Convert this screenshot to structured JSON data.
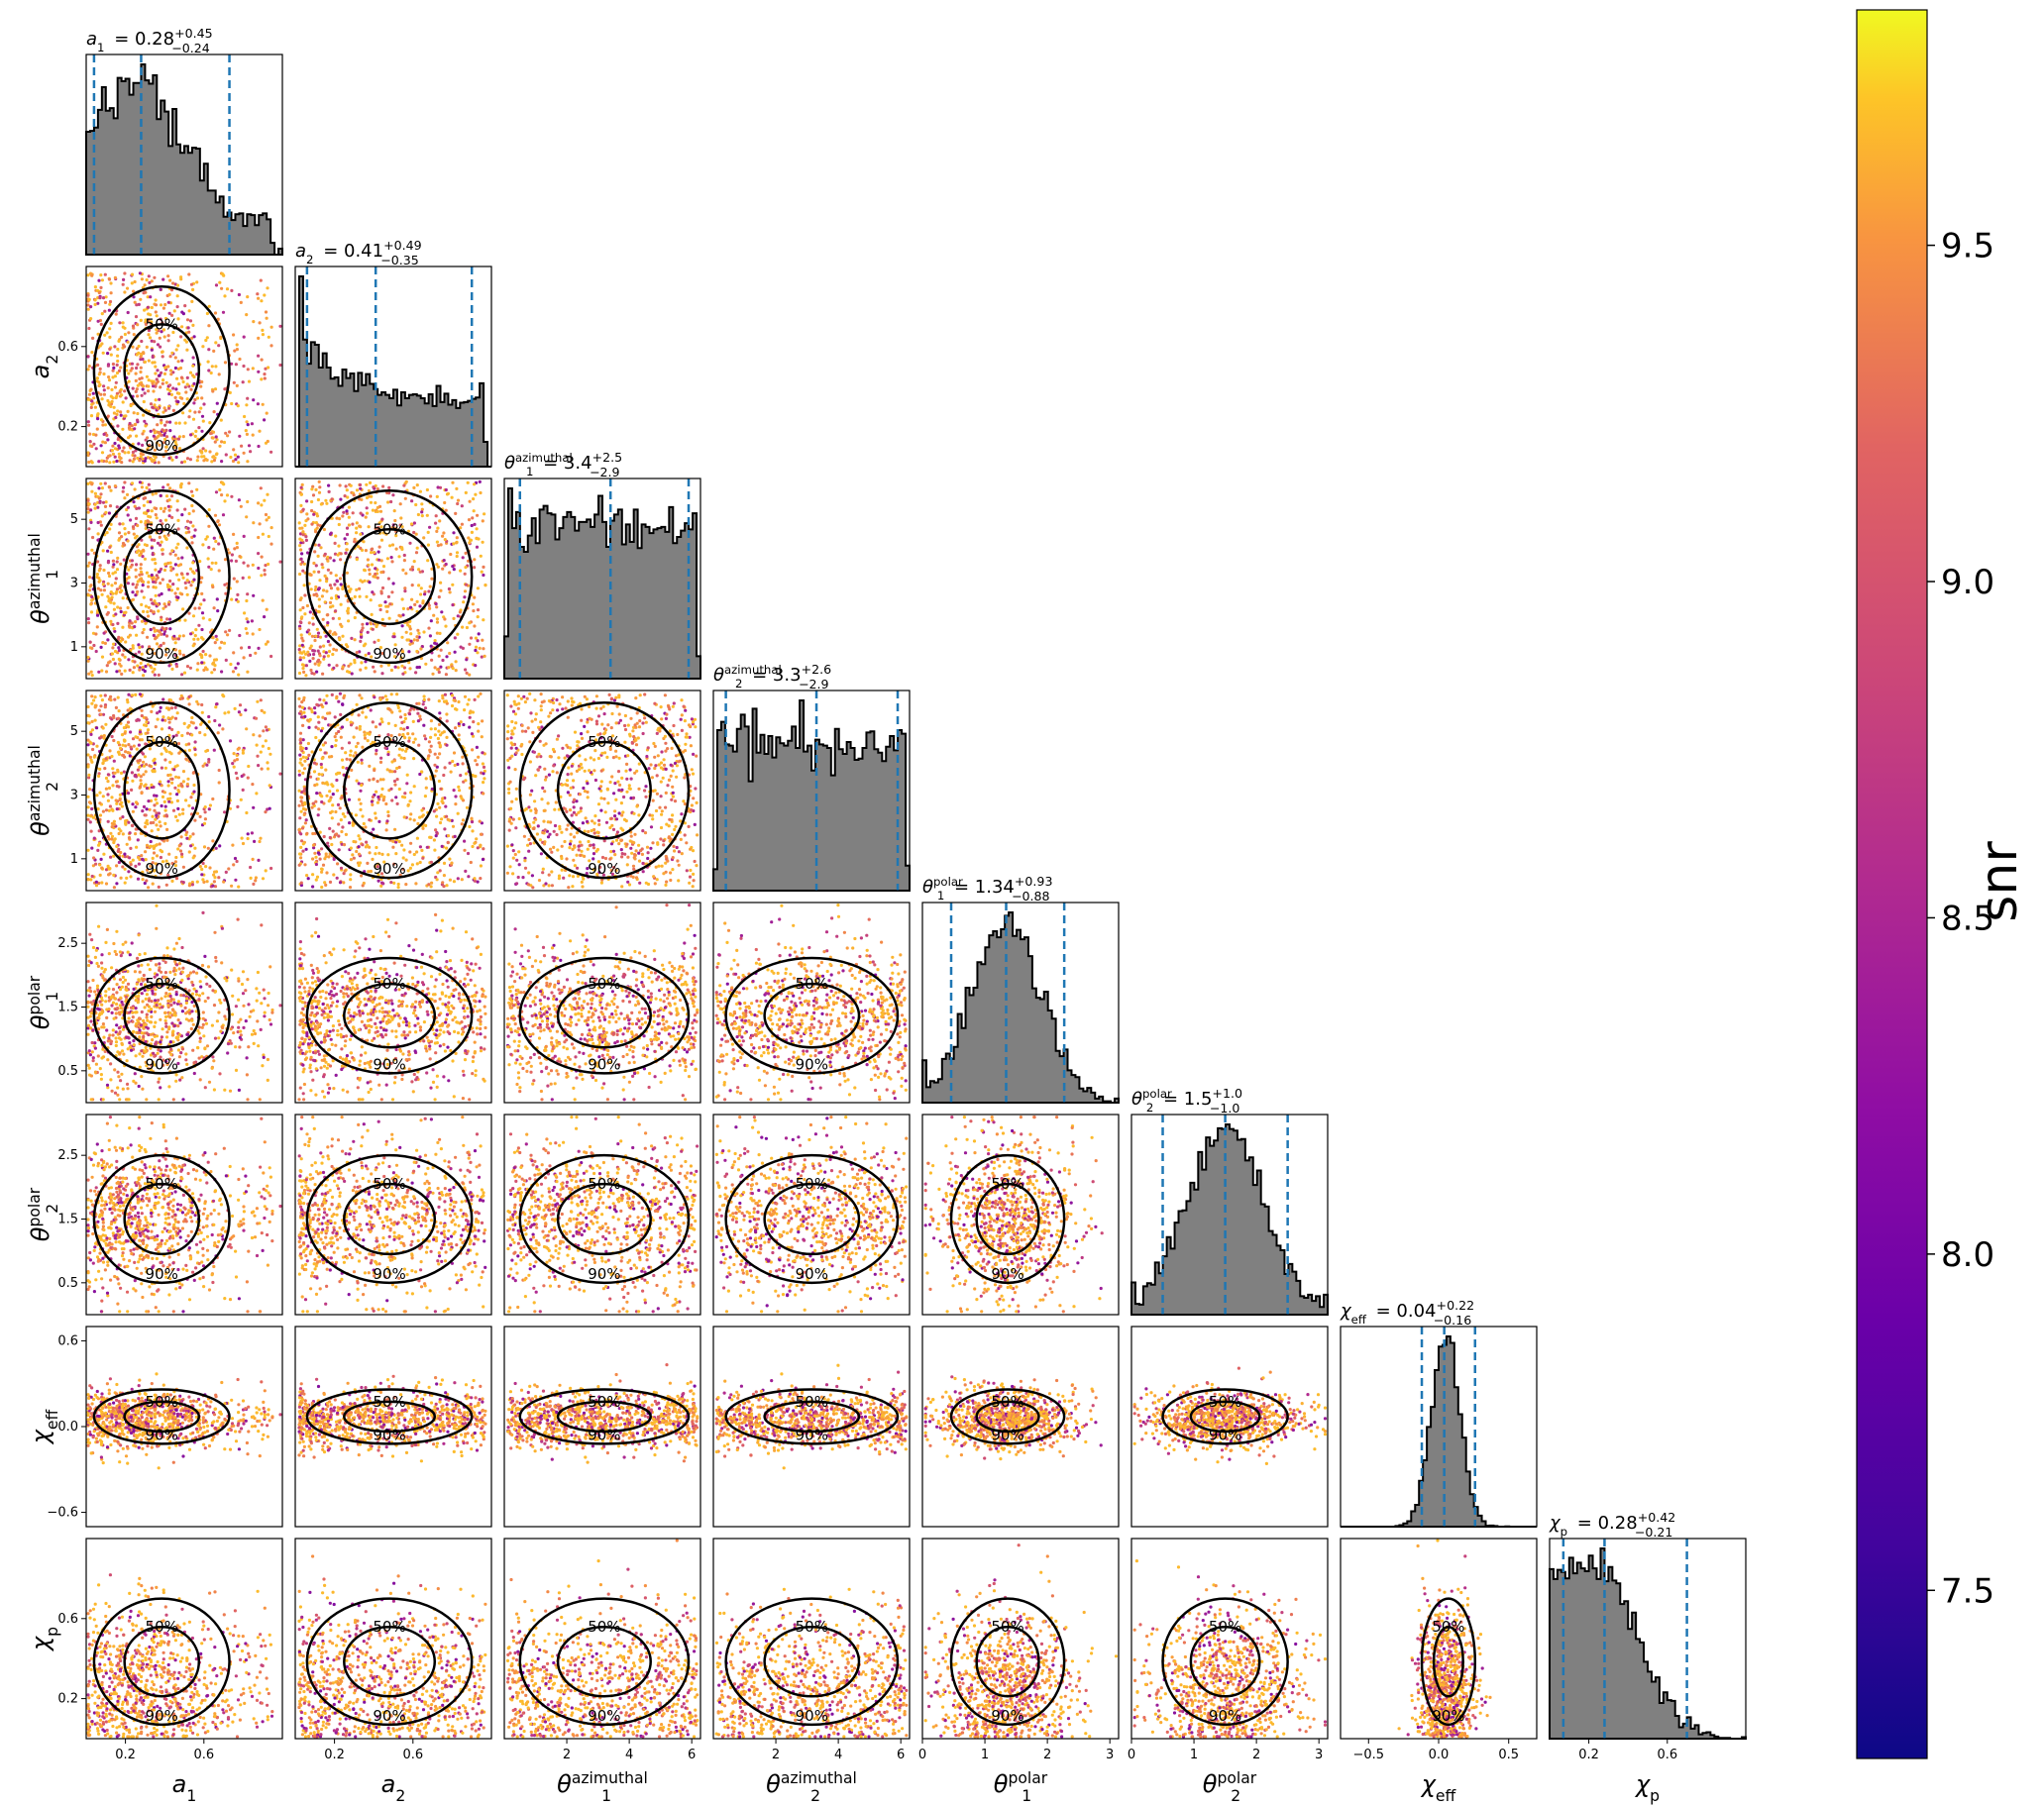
{
  "chart_data": {
    "type": "corner",
    "parameters": [
      {
        "key": "a1",
        "sym": "a",
        "sub": "1",
        "sup": "",
        "range": [
          0,
          1
        ],
        "ticks": [
          0.2,
          0.6
        ],
        "tick_labels": [
          "0.2",
          "0.6"
        ],
        "dist": "a1",
        "title": {
          "prefix": "",
          "value": "0.28",
          "plus": "+0.45",
          "minus": "−0.24"
        },
        "quantiles": [
          0.04,
          0.28,
          0.73
        ]
      },
      {
        "key": "a2",
        "sym": "a",
        "sub": "2",
        "sup": "",
        "range": [
          0,
          1
        ],
        "ticks": [
          0.2,
          0.6
        ],
        "tick_labels": [
          "0.2",
          "0.6"
        ],
        "dist": "a2",
        "title": {
          "prefix": "",
          "value": "0.41",
          "plus": "+0.49",
          "minus": "−0.35"
        },
        "quantiles": [
          0.06,
          0.41,
          0.9
        ]
      },
      {
        "key": "theta1_az",
        "sym": "θ",
        "sub": "1",
        "sup": "azimuthal",
        "range": [
          0,
          6.28
        ],
        "ticks": [
          1,
          3,
          5
        ],
        "tick_labels": [
          "1",
          "3",
          "5"
        ],
        "tick_labels_x": [
          "2",
          "4",
          "6"
        ],
        "ticks_x": [
          2,
          4,
          6
        ],
        "dist": "uniform",
        "title": {
          "prefix": "",
          "value": "3.4",
          "plus": "+2.5",
          "minus": "−2.9"
        },
        "quantiles": [
          0.5,
          3.4,
          5.9
        ]
      },
      {
        "key": "theta2_az",
        "sym": "θ",
        "sub": "2",
        "sup": "azimuthal",
        "range": [
          0,
          6.28
        ],
        "ticks": [
          1,
          3,
          5
        ],
        "tick_labels": [
          "1",
          "3",
          "5"
        ],
        "tick_labels_x": [
          "2",
          "4",
          "6"
        ],
        "ticks_x": [
          2,
          4,
          6
        ],
        "dist": "uniform",
        "title": {
          "prefix": "",
          "value": "3.3",
          "plus": "+2.6",
          "minus": "−2.9"
        },
        "quantiles": [
          0.4,
          3.3,
          5.9
        ]
      },
      {
        "key": "theta1_pol",
        "sym": "θ",
        "sub": "1",
        "sup": "polar",
        "range": [
          0,
          3.14
        ],
        "ticks": [
          0.5,
          1.5,
          2.5
        ],
        "tick_labels": [
          "0.5",
          "1.5",
          "2.5"
        ],
        "tick_labels_x": [
          "0",
          "1",
          "2",
          "3"
        ],
        "ticks_x": [
          0,
          1,
          2,
          3
        ],
        "dist": "polar1",
        "title": {
          "prefix": "",
          "value": "1.34",
          "plus": "+0.93",
          "minus": "−0.88"
        },
        "quantiles": [
          0.46,
          1.34,
          2.27
        ]
      },
      {
        "key": "theta2_pol",
        "sym": "θ",
        "sub": "2",
        "sup": "polar",
        "range": [
          0,
          3.14
        ],
        "ticks": [
          0.5,
          1.5,
          2.5
        ],
        "tick_labels": [
          "0.5",
          "1.5",
          "2.5"
        ],
        "tick_labels_x": [
          "0",
          "1",
          "2",
          "3"
        ],
        "ticks_x": [
          0,
          1,
          2,
          3
        ],
        "dist": "polar2",
        "title": {
          "prefix": "",
          "value": "1.5",
          "plus": "+1.0",
          "minus": "−1.0"
        },
        "quantiles": [
          0.5,
          1.5,
          2.5
        ]
      },
      {
        "key": "chi_eff",
        "sym": "χ",
        "sub": "eff",
        "sup": "",
        "range": [
          -0.7,
          0.7
        ],
        "ticks": [
          -0.6,
          0.0,
          0.6
        ],
        "tick_labels": [
          "−0.6",
          "0.0",
          "0.6"
        ],
        "tick_labels_x": [
          "−0.5",
          "0.0",
          "0.5"
        ],
        "ticks_x": [
          -0.5,
          0.0,
          0.5
        ],
        "dist": "chieff",
        "title": {
          "prefix": "",
          "value": "0.04",
          "plus": "+0.22",
          "minus": "−0.16"
        },
        "quantiles": [
          -0.12,
          0.04,
          0.26
        ]
      },
      {
        "key": "chi_p",
        "sym": "χ",
        "sub": "p",
        "sup": "",
        "range": [
          0,
          1
        ],
        "ticks": [
          0.2,
          0.6
        ],
        "tick_labels": [
          "0.2",
          "0.6"
        ],
        "dist": "chip",
        "title": {
          "prefix": "",
          "value": "0.28",
          "plus": "+0.42",
          "minus": "−0.21"
        },
        "quantiles": [
          0.07,
          0.28,
          0.7
        ]
      }
    ],
    "contour_levels": [
      "50%",
      "90%"
    ],
    "colorbar": {
      "label": "snr",
      "min": 7.25,
      "max": 9.85,
      "ticks": [
        7.5,
        8.0,
        8.5,
        9.0,
        9.5
      ],
      "tick_labels": [
        "7.5",
        "8.0",
        "8.5",
        "9.0",
        "9.5"
      ],
      "colormap": "plasma"
    },
    "colors": {
      "hist_fill": "#808080",
      "quantile_line": "#1f77b4",
      "contour": "#000000"
    }
  }
}
